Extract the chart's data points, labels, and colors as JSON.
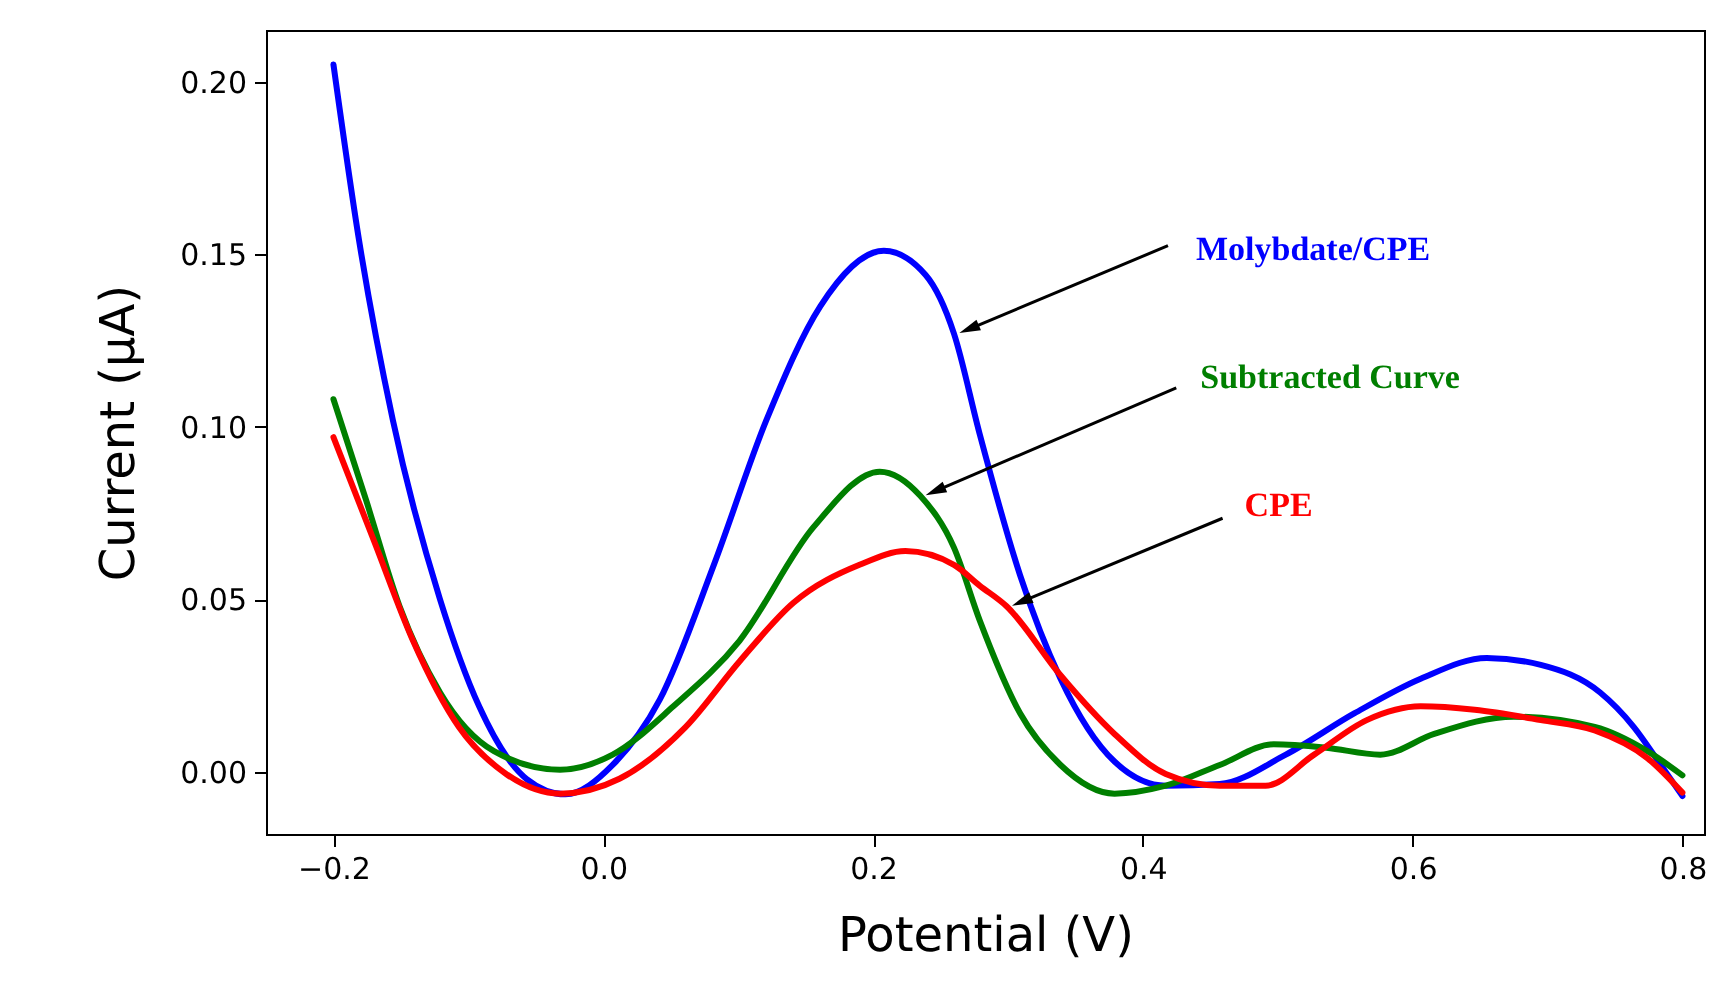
{
  "chart_data": {
    "type": "line",
    "xlabel": "Potential (V)",
    "ylabel": "Current (μA)",
    "xlim": [
      -0.25,
      0.816
    ],
    "ylim": [
      -0.018,
      0.215
    ],
    "xticks": [
      {
        "value": -0.2,
        "label": "−0.2"
      },
      {
        "value": 0,
        "label": "0.0"
      },
      {
        "value": 0.2,
        "label": "0.2"
      },
      {
        "value": 0.4,
        "label": "0.4"
      },
      {
        "value": 0.6,
        "label": "0.6"
      },
      {
        "value": 0.8,
        "label": "0.8"
      }
    ],
    "yticks": [
      {
        "value": 0,
        "label": "0.00"
      },
      {
        "value": 0.05,
        "label": "0.05"
      },
      {
        "value": 0.1,
        "label": "0.10"
      },
      {
        "value": 0.15,
        "label": "0.15"
      },
      {
        "value": 0.2,
        "label": "0.20"
      }
    ],
    "grid": false,
    "line_style": "solid",
    "marker": "none",
    "series": [
      {
        "name": "Molybdate/CPE",
        "color": "#0000ff",
        "x": [
          -0.2,
          -0.181,
          -0.156,
          -0.121,
          -0.092,
          -0.057,
          -0.028,
          0.007,
          0.042,
          0.082,
          0.121,
          0.161,
          0.208,
          0.239,
          0.26,
          0.279,
          0.309,
          0.339,
          0.379,
          0.417,
          0.457,
          0.506,
          0.557,
          0.606,
          0.655,
          0.695,
          0.739,
          0.764,
          0.784,
          0.8
        ],
        "values": [
          0.205,
          0.154,
          0.102,
          0.05,
          0.019,
          -0.002,
          -0.0065,
          0.002,
          0.021,
          0.06,
          0.102,
          0.135,
          0.151,
          0.144,
          0.127,
          0.098,
          0.057,
          0.027,
          0.003,
          -0.004,
          -0.0035,
          0.005,
          0.017,
          0.027,
          0.033,
          0.031,
          0.023,
          0.013,
          0.002,
          -0.007
        ]
      },
      {
        "name": "Subtracted Curve",
        "color": "#007f00",
        "x": [
          -0.2,
          -0.176,
          -0.151,
          -0.121,
          -0.081,
          -0.032,
          0.007,
          0.052,
          0.101,
          0.156,
          0.205,
          0.235,
          0.26,
          0.279,
          0.309,
          0.339,
          0.379,
          0.417,
          0.457,
          0.497,
          0.536,
          0.576,
          0.616,
          0.675,
          0.735,
          0.774,
          0.8
        ],
        "values": [
          0.108,
          0.079,
          0.048,
          0.023,
          0.006,
          0.0006,
          0.005,
          0.019,
          0.038,
          0.071,
          0.087,
          0.08,
          0.065,
          0.044,
          0.017,
          0.002,
          -0.0063,
          -0.004,
          0.002,
          0.008,
          0.007,
          0.005,
          0.011,
          0.016,
          0.013,
          0.006,
          -0.001
        ]
      },
      {
        "name": "CPE",
        "color": "#ff0000",
        "x": [
          -0.2,
          -0.17,
          -0.141,
          -0.107,
          -0.072,
          -0.032,
          0.012,
          0.061,
          0.101,
          0.141,
          0.19,
          0.224,
          0.26,
          0.279,
          0.299,
          0.339,
          0.379,
          0.417,
          0.457,
          0.491,
          0.527,
          0.566,
          0.606,
          0.646,
          0.695,
          0.735,
          0.774,
          0.8
        ],
        "values": [
          0.097,
          0.067,
          0.038,
          0.013,
          -0.0006,
          -0.0063,
          -0.002,
          0.013,
          0.032,
          0.049,
          0.06,
          0.064,
          0.06,
          0.054,
          0.048,
          0.028,
          0.011,
          -0.0006,
          -0.004,
          -0.004,
          0.005,
          0.015,
          0.019,
          0.018,
          0.015,
          0.012,
          0.004,
          -0.006
        ]
      }
    ]
  }
}
